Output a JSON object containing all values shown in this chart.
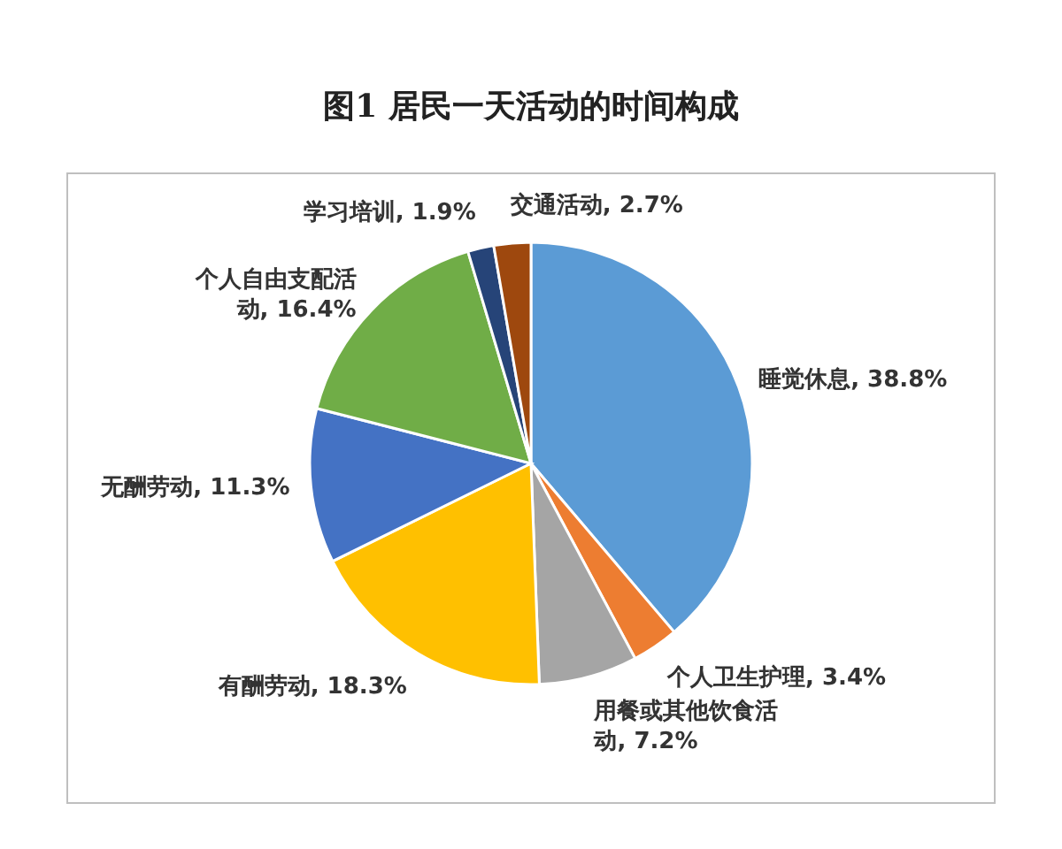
{
  "chart_data": {
    "type": "pie",
    "title": "图1  居民一天活动的时间构成",
    "categories": [
      "睡觉休息",
      "个人卫生护理",
      "用餐或其他饮食活动",
      "有酬劳动",
      "无酬劳动",
      "个人自由支配活动",
      "学习培训",
      "交通活动"
    ],
    "values": [
      38.8,
      3.4,
      7.2,
      18.3,
      11.3,
      16.4,
      1.9,
      2.7
    ],
    "value_labels": [
      "38.8%",
      "3.4%",
      "7.2%",
      "18.3%",
      "11.3%",
      "16.4%",
      "1.9%",
      "2.7%"
    ],
    "colors": [
      "#5b9bd5",
      "#ed7d31",
      "#a5a5a5",
      "#ffc000",
      "#4472c4",
      "#70ad47",
      "#264478",
      "#9e480e"
    ]
  }
}
